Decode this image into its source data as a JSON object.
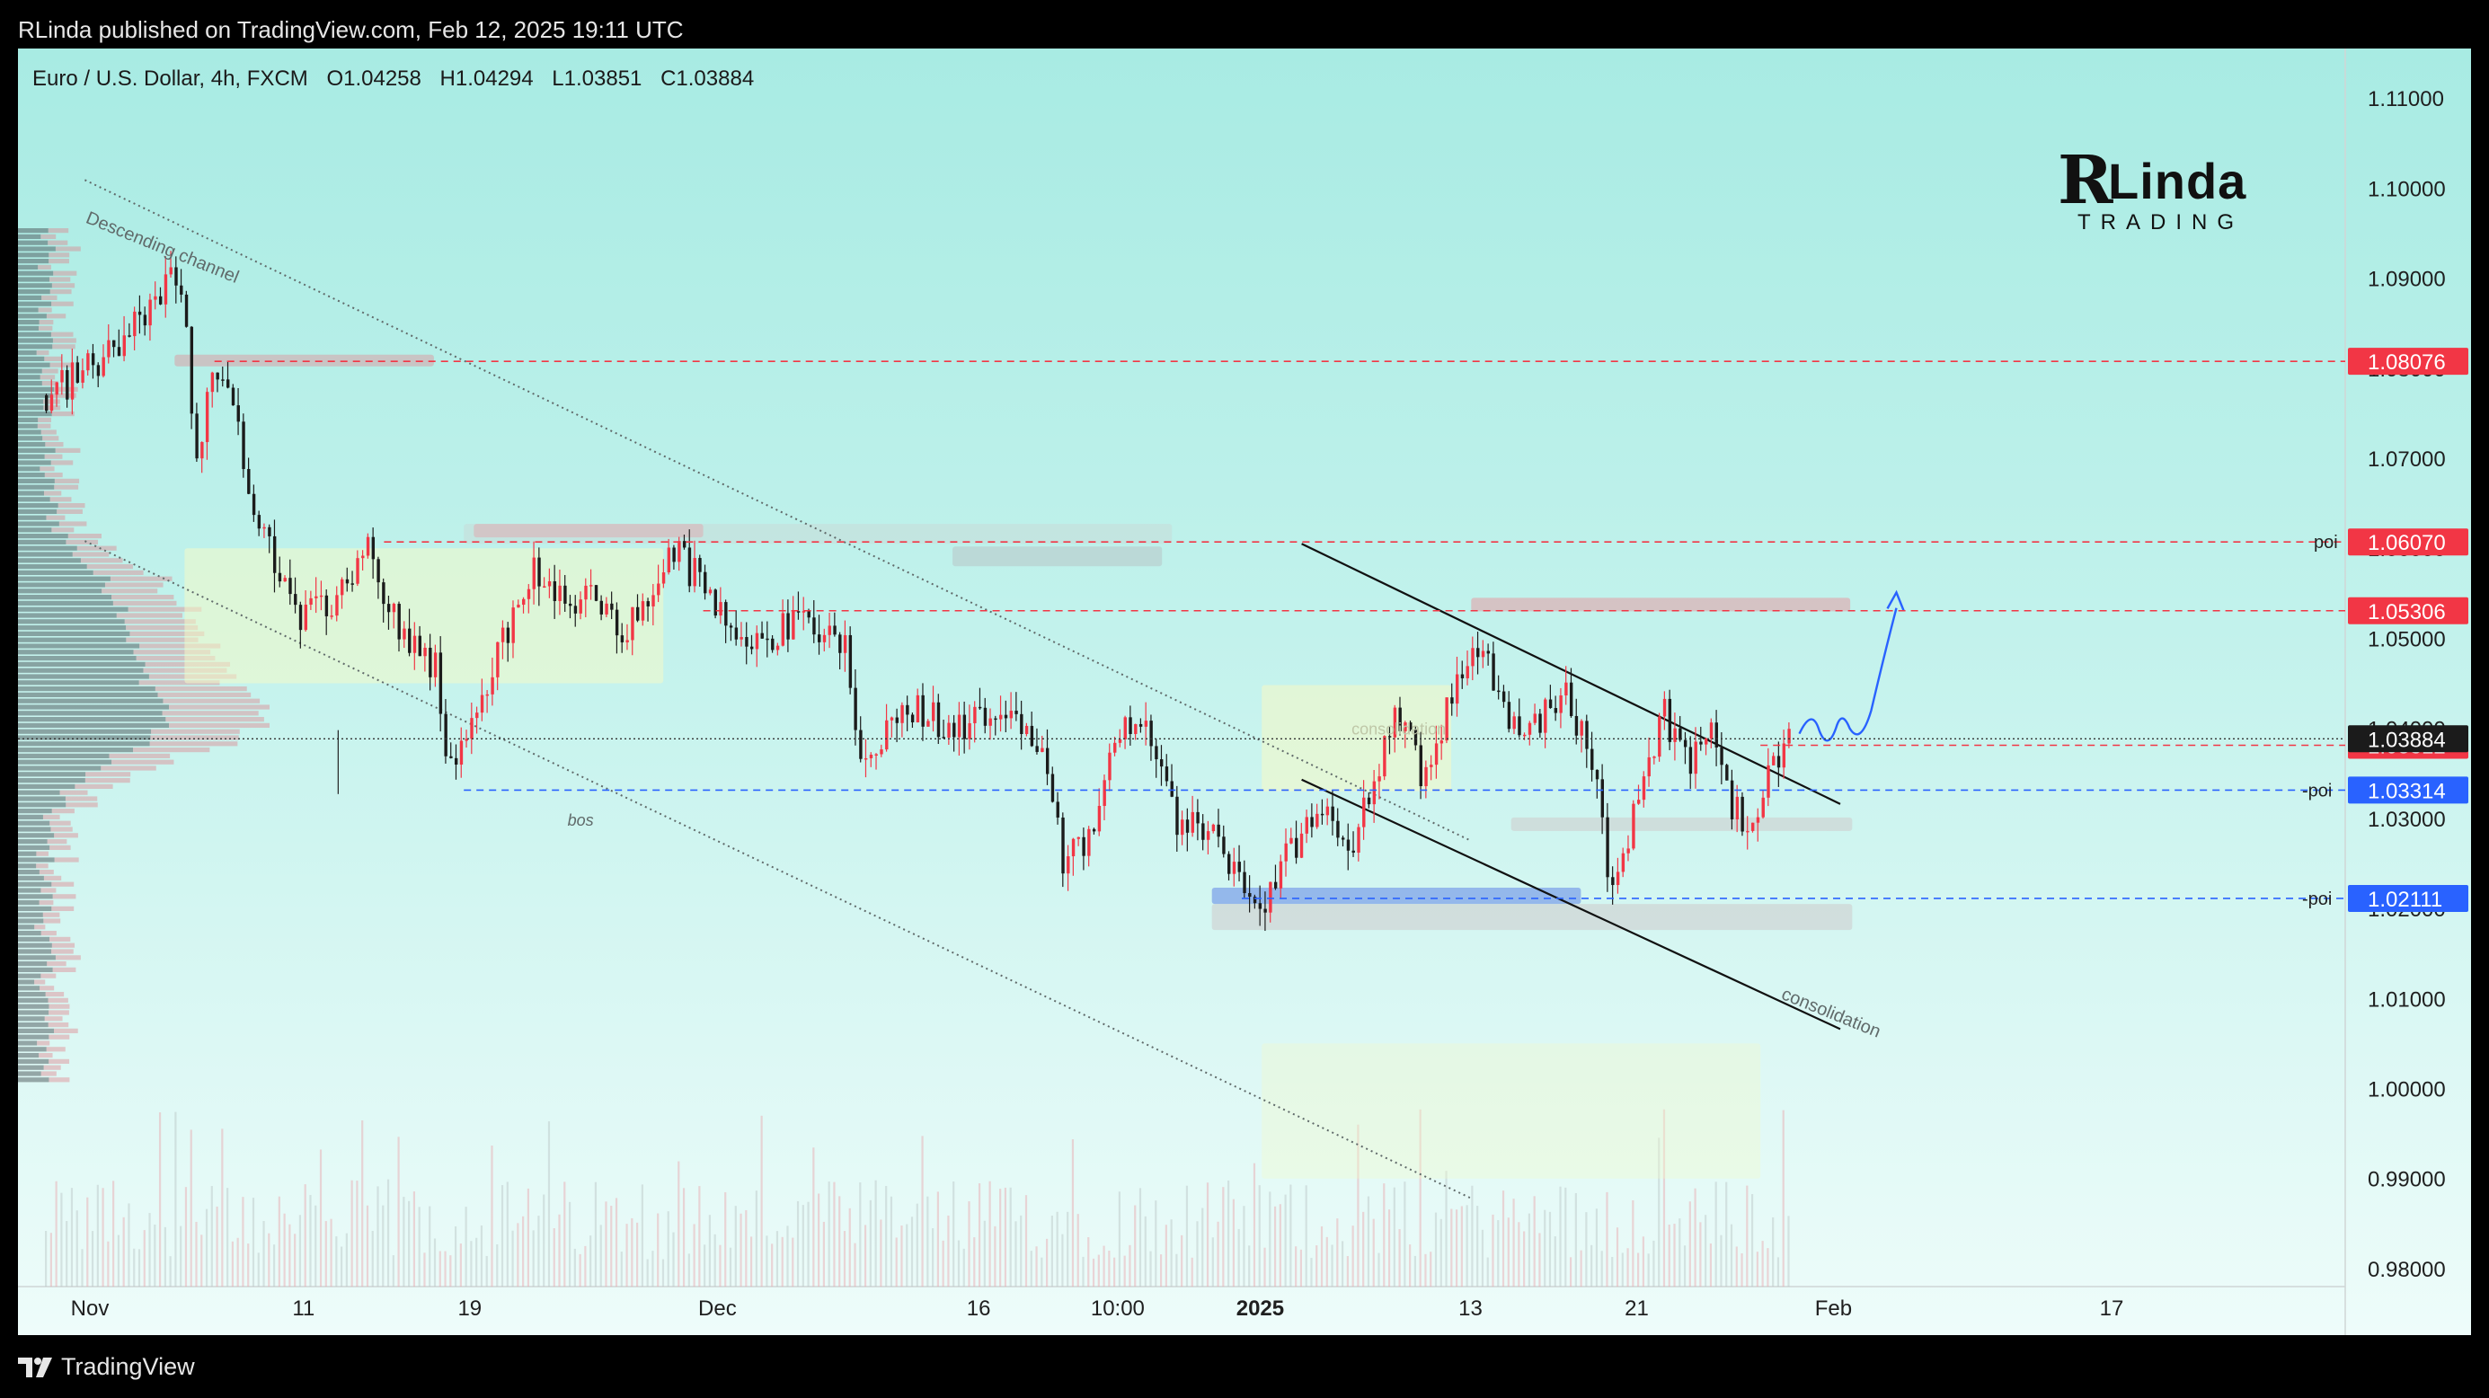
{
  "header": {
    "published": "RLinda published on TradingView.com, Feb 12, 2025 19:11 UTC"
  },
  "symbol": {
    "name": "Euro / U.S. Dollar, 4h, FXCM",
    "open": "O1.04258",
    "high": "H1.04294",
    "low": "L1.03851",
    "close": "C1.03884"
  },
  "logo": {
    "r": "R",
    "name": "Linda",
    "sub": "TRADING"
  },
  "footer": {
    "brand": "TradingView"
  },
  "chart_data": {
    "type": "candlestick",
    "instrument": "EUR/USD",
    "timeframe": "4h",
    "ylim": [
      0.978,
      1.1155
    ],
    "y_ticks": [
      "1.11000",
      "1.10000",
      "1.09000",
      "1.08000",
      "1.07000",
      "1.06000",
      "1.05000",
      "1.04000",
      "1.03000",
      "1.02000",
      "1.01000",
      "1.00000",
      "0.99000",
      "0.98000"
    ],
    "x_ticks": [
      "Nov",
      "11",
      "19",
      "Dec",
      "16",
      "10:00",
      "2025",
      "13",
      "21",
      "Feb",
      "17"
    ],
    "price_path": [
      [
        0,
        1.077
      ],
      [
        0.035,
        1.082
      ],
      [
        0.06,
        1.089
      ],
      [
        0.063,
        1.093
      ],
      [
        0.07,
        1.084
      ],
      [
        0.075,
        1.071
      ],
      [
        0.085,
        1.08
      ],
      [
        0.09,
        1.081
      ],
      [
        0.1,
        1.067
      ],
      [
        0.11,
        1.062
      ],
      [
        0.125,
        1.052
      ],
      [
        0.14,
        1.053
      ],
      [
        0.16,
        1.06
      ],
      [
        0.18,
        1.05
      ],
      [
        0.195,
        1.047
      ],
      [
        0.2,
        1.036
      ],
      [
        0.215,
        1.04
      ],
      [
        0.225,
        1.048
      ],
      [
        0.245,
        1.058
      ],
      [
        0.26,
        1.053
      ],
      [
        0.275,
        1.055
      ],
      [
        0.29,
        1.05
      ],
      [
        0.305,
        1.056
      ],
      [
        0.315,
        1.06
      ],
      [
        0.325,
        1.057
      ],
      [
        0.34,
        1.052
      ],
      [
        0.36,
        1.05
      ],
      [
        0.38,
        1.052
      ],
      [
        0.4,
        1.049
      ],
      [
        0.41,
        1.036
      ],
      [
        0.425,
        1.041
      ],
      [
        0.435,
        1.042
      ],
      [
        0.46,
        1.04
      ],
      [
        0.485,
        1.043
      ],
      [
        0.5,
        1.036
      ],
      [
        0.51,
        1.025
      ],
      [
        0.525,
        1.029
      ],
      [
        0.54,
        1.042
      ],
      [
        0.555,
        1.039
      ],
      [
        0.565,
        1.03
      ],
      [
        0.585,
        1.028
      ],
      [
        0.6,
        1.022
      ],
      [
        0.61,
        1.02
      ],
      [
        0.625,
        1.027
      ],
      [
        0.64,
        1.032
      ],
      [
        0.655,
        1.027
      ],
      [
        0.66,
        1.03
      ],
      [
        0.675,
        1.042
      ],
      [
        0.69,
        1.035
      ],
      [
        0.71,
        1.046
      ],
      [
        0.72,
        1.05
      ],
      [
        0.73,
        1.042
      ],
      [
        0.745,
        1.04
      ],
      [
        0.76,
        1.044
      ],
      [
        0.775,
        1.037
      ],
      [
        0.785,
        1.021
      ],
      [
        0.795,
        1.03
      ],
      [
        0.81,
        1.042
      ],
      [
        0.825,
        1.036
      ],
      [
        0.835,
        1.039
      ],
      [
        0.845,
        1.031
      ],
      [
        0.855,
        1.029
      ],
      [
        0.868,
        1.037
      ],
      [
        0.873,
        1.042
      ],
      [
        0.875,
        1.039
      ]
    ],
    "last_candle_index": 0.875,
    "horizontal_levels": [
      {
        "price": 1.08076,
        "label": "1.08076",
        "color": "#f23645",
        "style": "dashed",
        "start": 0.085
      },
      {
        "price": 1.0607,
        "label": "1.06070",
        "color": "#f23645",
        "style": "dashed",
        "start": 0.17,
        "note": "poi"
      },
      {
        "price": 1.05306,
        "label": "1.05306",
        "color": "#f23645",
        "style": "dashed",
        "start": 0.33
      },
      {
        "price": 1.03812,
        "label": "1.03812",
        "color": "#f23645",
        "style": "dashed",
        "start": 0.86
      },
      {
        "price": 1.03314,
        "label": "1.03314",
        "color": "#2962ff",
        "style": "dashed",
        "start": 0.21,
        "note": "-poi"
      },
      {
        "price": 1.02111,
        "label": "1.02111",
        "color": "#2962ff",
        "style": "dashed",
        "start": 0.6,
        "note": "-poi"
      }
    ],
    "current_price": {
      "price": 1.03884,
      "label": "1.03884"
    },
    "annotations": [
      "Descending channel",
      "bos",
      "consolidation",
      "consolidation",
      "poi",
      "-poi",
      "-poi"
    ],
    "grid": false,
    "volume_profile": true
  }
}
